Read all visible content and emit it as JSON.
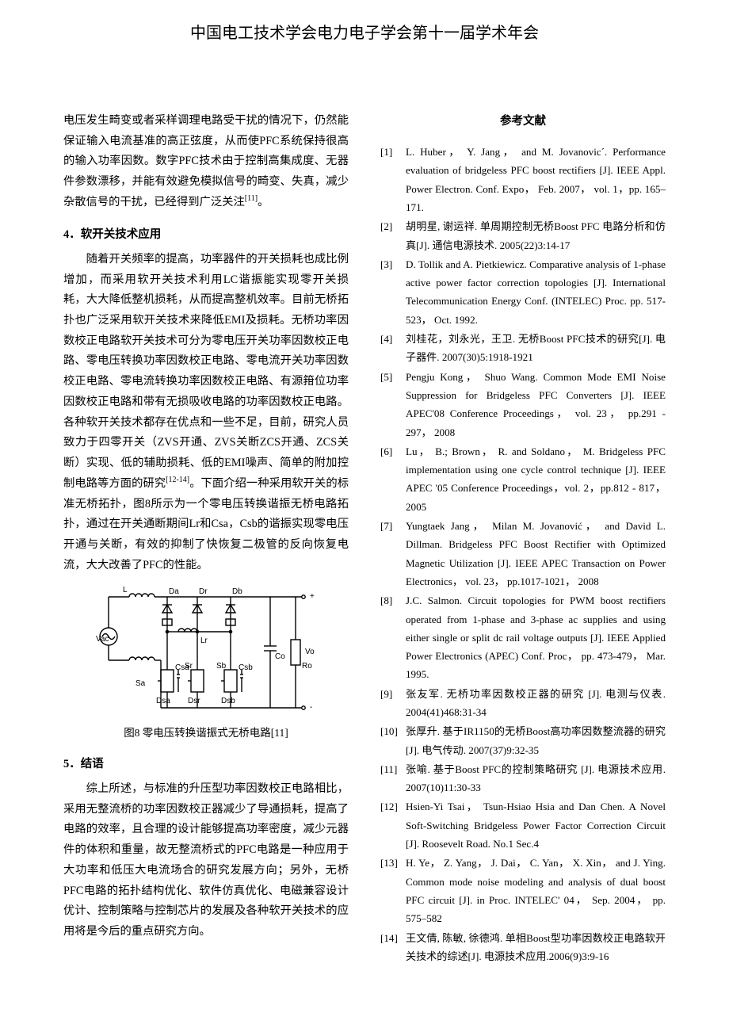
{
  "header": "中国电工技术学会电力电子学会第十一届学术年会",
  "left": {
    "intro_para": "电压发生畸变或者采样调理电路受干扰的情况下，仍然能保证输入电流基准的高正弦度，从而使PFC系统保持很高的输入功率因数。数字PFC技术由于控制高集成度、无器件参数漂移，并能有效避免模拟信号的畸变、失真，减少杂散信号的干扰，已经得到广泛关注",
    "intro_sup": "[11]",
    "intro_tail": "。",
    "sec4_title": "4．软开关技术应用",
    "sec4_para": "随着开关频率的提高，功率器件的开关损耗也成比例增加，而采用软开关技术利用LC谐振能实现零开关损耗，大大降低整机损耗，从而提高整机效率。目前无桥拓扑也广泛采用软开关技术来降低EMI及损耗。无桥功率因数校正电路软开关技术可分为零电压开关功率因数校正电路、零电压转换功率因数校正电路、零电流开关功率因数校正电路、零电流转换功率因数校正电路、有源箝位功率因数校正电路和带有无损吸收电路的功率因数校正电路。各种软开关技术都存在优点和一些不足，目前，研究人员致力于四零开关（ZVS开通、ZVS关断ZCS开通、ZCS关断）实现、低的辅助损耗、低的EMI噪声、简单的附加控制电路等方面的研究",
    "sec4_sup": "[12-14]",
    "sec4_tail": "。下面介绍一种采用软开关的标准无桥拓扑，图8所示为一个零电压转换谐振无桥电路拓扑，通过在开关通断期间Lr和Csa，Csb的谐振实现零电压开通与关断，有效的抑制了快恢复二极管的反向恢复电流，大大改善了PFC的性能。",
    "fig8_caption": "图8  零电压转换谐振式无桥电路[11]",
    "fig8_labels": {
      "Vac": "Vac",
      "L": "L",
      "Da": "Da",
      "Dr": "Dr",
      "Db": "Db",
      "Lr": "Lr",
      "Co": "Co",
      "Vo": "Vo",
      "Ro": "Ro",
      "Sa": "Sa",
      "Dsa": "Dsa",
      "Csa": "Csa",
      "Sr": "Sr",
      "Dsr": "Dsr",
      "Sb": "Sb",
      "Dsb": "Dsb",
      "Csb": "Csb",
      "plus": "+",
      "minus": "-"
    },
    "sec5_title": "5．结语",
    "sec5_para": "综上所述，与标准的升压型功率因数校正电路相比，采用无整流桥的功率因数校正器减少了导通损耗，提高了电路的效率，且合理的设计能够提高功率密度，减少元器件的体积和重量，故无整流桥式的PFC电路是一种应用于大功率和低压大电流场合的研究发展方向；另外，无桥PFC电路的拓扑结构优化、软件仿真优化、电磁兼容设计优计、控制策略与控制芯片的发展及各种软开关技术的应用将是今后的重点研究方向。"
  },
  "refs_title": "参考文献",
  "references": [
    {
      "n": "[1]",
      "t": "L. Huber，  Y. Jang，  and M. Jovanovic´. Performance evaluation of bridgeless PFC boost rectifiers [J]. IEEE Appl. Power Electron. Conf. Expo，  Feb. 2007，  vol. 1，pp. 165–171."
    },
    {
      "n": "[2]",
      "t": "胡明星, 谢运祥. 单周期控制无桥Boost PFC 电路分析和仿真[J]. 通信电源技术.  2005(22)3:14-17"
    },
    {
      "n": "[3]",
      "t": "D. Tollik and A. Pietkiewicz. Comparative analysis of 1-phase active power factor correction topologies [J]. International Telecommunication Energy Conf. (INTELEC) Proc. pp. 517-523，  Oct. 1992."
    },
    {
      "n": "[4]",
      "t": "刘桂花，刘永光，王卫. 无桥Boost PFC技术的研究[J]. 电子器件. 2007(30)5:1918-1921"
    },
    {
      "n": "[5]",
      "t": "Pengju Kong，  Shuo Wang.   Common Mode EMI Noise Suppression for Bridgeless PFC Converters [J]. IEEE APEC'08 Conference Proceedings，  vol. 23，  pp.291 - 297，  2008"
    },
    {
      "n": "[6]",
      "t": "Lu，  B.; Brown，  R. and Soldano，  M.   Bridgeless PFC implementation using one cycle control technique [J]. IEEE APEC '05 Conference Proceedings，vol. 2，pp.812 - 817，  2005"
    },
    {
      "n": "[7]",
      "t": "Yungtaek Jang，  Milan M. Jovanović，  and David L. Dillman. Bridgeless PFC Boost Rectifier with Optimized Magnetic Utilization [J]. IEEE APEC Transaction on Power Electronics，  vol. 23，  pp.1017-1021，  2008"
    },
    {
      "n": "[8]",
      "t": "J.C. Salmon. Circuit topologies for PWM boost rectifiers operated from 1-phase and 3-phase ac supplies and using either single or split dc rail voltage outputs [J]. IEEE Applied Power Electronics (APEC) Conf. Proc，  pp. 473-479，  Mar. 1995."
    },
    {
      "n": "[9]",
      "t": "张友军.  无桥功率因数校正器的研究 [J].  电测与仪表. 2004(41)468:31-34"
    },
    {
      "n": "[10]",
      "t": "张厚升. 基于IR1150的无桥Boost高功率因数整流器的研究[J]. 电气传动. 2007(37)9:32-35"
    },
    {
      "n": "[11]",
      "t": "张喻.  基于Boost PFC的控制策略研究 [J].  电源技术应用. 2007(10)11:30-33"
    },
    {
      "n": "[12]",
      "t": "Hsien-Yi Tsai，  Tsun-Hsiao Hsia and Dan Chen. A Novel Soft-Switching Bridgeless Power Factor Correction Circuit [J]. Roosevelt Road. No.1 Sec.4"
    },
    {
      "n": "[13]",
      "t": "H. Ye，  Z. Yang，  J. Dai，  C. Yan，  X. Xin，  and J. Ying. Common mode noise modeling and analysis of dual boost PFC circuit [J]. in Proc. INTELEC' 04，  Sep. 2004，  pp. 575–582"
    },
    {
      "n": "[14]",
      "t": "王文倩, 陈敏, 徐德鸿. 单相Boost型功率因数校正电路软开关技术的综述[J].  电源技术应用.2006(9)3:9-16"
    }
  ],
  "svg_style": {
    "stroke": "#000000",
    "stroke_width": 1.4,
    "font_family": "Arial, sans-serif",
    "font_size": 10
  }
}
